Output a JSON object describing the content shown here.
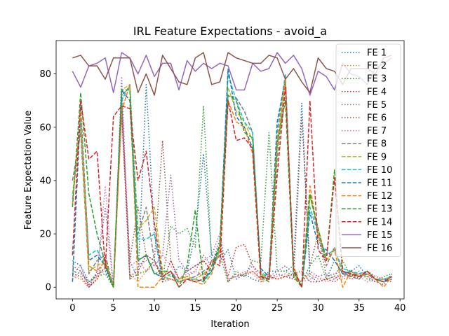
{
  "chart_data": {
    "type": "line",
    "title": "IRL Feature Expectations - avoid_a",
    "xlabel": "Iteration",
    "ylabel": "Feature Expectation Value",
    "xlim": [
      -2,
      40.5
    ],
    "ylim": [
      -4.4,
      92.5
    ],
    "xticks": [
      0,
      5,
      10,
      15,
      20,
      25,
      30,
      35,
      40
    ],
    "yticks": [
      0,
      20,
      40,
      60,
      80
    ],
    "grid": false,
    "legend_position": "top-right",
    "x": [
      0,
      1,
      2,
      3,
      4,
      5,
      6,
      7,
      8,
      9,
      10,
      11,
      12,
      13,
      14,
      15,
      16,
      17,
      18,
      19,
      20,
      21,
      22,
      23,
      24,
      25,
      26,
      27,
      28,
      29,
      30,
      31,
      32,
      33,
      34,
      35,
      36,
      37,
      38,
      39
    ],
    "series": [
      {
        "name": "FE 1",
        "color": "#1f77b4",
        "dash": "dotted",
        "values": [
          10,
          8,
          2,
          5,
          6,
          0,
          69,
          10,
          3,
          76,
          20,
          2,
          3,
          8,
          6,
          20,
          50,
          12,
          10,
          14,
          3,
          5,
          3,
          2,
          6,
          6,
          6,
          8,
          69,
          4,
          2,
          3,
          10,
          5,
          6,
          8,
          4,
          2,
          1,
          5
        ]
      },
      {
        "name": "FE 2",
        "color": "#ff7f0e",
        "dash": "dotted",
        "values": [
          4,
          3,
          0,
          3,
          8,
          0,
          70,
          5,
          2,
          6,
          10,
          3,
          3,
          2,
          4,
          2,
          10,
          6,
          16,
          3,
          4,
          5,
          6,
          3,
          4,
          3,
          4,
          3,
          2,
          5,
          3,
          3,
          4,
          3,
          4,
          5,
          4,
          3,
          2,
          4
        ]
      },
      {
        "name": "FE 3",
        "color": "#2ca02c",
        "dash": "dotted",
        "values": [
          6,
          5,
          2,
          4,
          5,
          0,
          72,
          3,
          5,
          6,
          10,
          3,
          23,
          20,
          22,
          15,
          68,
          10,
          12,
          2,
          6,
          4,
          10,
          9,
          58,
          6,
          6,
          4,
          2,
          8,
          12,
          3,
          4,
          10,
          4,
          6,
          3,
          2,
          4,
          5
        ]
      },
      {
        "name": "FE 4",
        "color": "#d62728",
        "dash": "dotted",
        "values": [
          5,
          4,
          0,
          3,
          12,
          0,
          66,
          4,
          6,
          12,
          10,
          2,
          10,
          3,
          6,
          8,
          10,
          6,
          15,
          4,
          15,
          16,
          8,
          5,
          4,
          3,
          4,
          5,
          6,
          2,
          2,
          3,
          2,
          4,
          5,
          3,
          6,
          4,
          3,
          2
        ]
      },
      {
        "name": "FE 5",
        "color": "#9467bd",
        "dash": "dotted",
        "values": [
          5,
          8,
          0,
          6,
          30,
          0,
          79,
          3,
          8,
          10,
          8,
          12,
          42,
          10,
          6,
          8,
          10,
          12,
          20,
          3,
          4,
          5,
          8,
          3,
          4,
          6,
          8,
          5,
          2,
          6,
          4,
          5,
          3,
          6,
          4,
          5,
          4,
          2,
          3,
          4
        ]
      },
      {
        "name": "FE 6",
        "color": "#8c564b",
        "dash": "dotted",
        "values": [
          8,
          6,
          1,
          5,
          7,
          0,
          67,
          10,
          30,
          12,
          10,
          55,
          10,
          3,
          4,
          6,
          12,
          8,
          18,
          2,
          5,
          4,
          6,
          3,
          3,
          5,
          4,
          3,
          64,
          8,
          20,
          4,
          5,
          6,
          3,
          4,
          5,
          3,
          3,
          4
        ]
      },
      {
        "name": "FE 7",
        "color": "#e377c2",
        "dash": "dotted",
        "values": [
          3,
          6,
          0,
          4,
          38,
          0,
          65,
          8,
          10,
          6,
          8,
          12,
          8,
          3,
          5,
          6,
          4,
          10,
          14,
          3,
          4,
          6,
          5,
          2,
          3,
          4,
          5,
          3,
          2,
          3,
          4,
          2,
          3,
          5,
          3,
          4,
          2,
          3,
          2,
          3
        ]
      },
      {
        "name": "FE 8",
        "color": "#7f7f7f",
        "dash": "dashed",
        "values": [
          40,
          58,
          5,
          10,
          12,
          0,
          72,
          75,
          20,
          30,
          10,
          4,
          6,
          2,
          3,
          4,
          6,
          8,
          12,
          72,
          71,
          66,
          58,
          4,
          5,
          48,
          78,
          6,
          0,
          35,
          20,
          8,
          15,
          5,
          4,
          3,
          6,
          3,
          2,
          4
        ]
      },
      {
        "name": "FE 9",
        "color": "#bcbd22",
        "dash": "dashed",
        "values": [
          35,
          60,
          6,
          8,
          10,
          0,
          74,
          76,
          22,
          25,
          30,
          6,
          4,
          3,
          4,
          3,
          5,
          8,
          14,
          75,
          66,
          62,
          55,
          5,
          3,
          52,
          78,
          8,
          0,
          34,
          22,
          10,
          14,
          6,
          5,
          4,
          5,
          3,
          3,
          4
        ]
      },
      {
        "name": "FE 10",
        "color": "#17becf",
        "dash": "dashed",
        "values": [
          33,
          62,
          12,
          14,
          8,
          0,
          70,
          76,
          18,
          18,
          20,
          3,
          5,
          2,
          3,
          3,
          2,
          6,
          15,
          80,
          70,
          62,
          58,
          6,
          3,
          58,
          80,
          6,
          0,
          30,
          20,
          12,
          14,
          7,
          6,
          5,
          6,
          3,
          3,
          4
        ]
      },
      {
        "name": "FE 11",
        "color": "#1f77b4",
        "dash": "dashed",
        "values": [
          2,
          68,
          10,
          12,
          8,
          0,
          74,
          70,
          10,
          12,
          5,
          4,
          3,
          2,
          3,
          2,
          3,
          6,
          16,
          82,
          64,
          60,
          52,
          7,
          4,
          62,
          78,
          6,
          0,
          28,
          16,
          14,
          10,
          5,
          6,
          4,
          5,
          3,
          2,
          3
        ]
      },
      {
        "name": "FE 12",
        "color": "#ff7f0e",
        "dash": "dashed",
        "values": [
          31,
          66,
          8,
          6,
          10,
          0,
          66,
          76,
          0,
          0,
          0,
          4,
          3,
          2,
          3,
          2,
          1,
          5,
          14,
          70,
          62,
          60,
          50,
          2,
          3,
          55,
          78,
          5,
          0,
          38,
          20,
          10,
          14,
          0,
          6,
          4,
          5,
          3,
          0,
          4
        ]
      },
      {
        "name": "FE 13",
        "color": "#2ca02c",
        "dash": "dashed",
        "values": [
          30,
          73,
          35,
          20,
          9,
          0,
          74,
          74,
          10,
          12,
          5,
          6,
          6,
          0,
          8,
          29,
          2,
          8,
          16,
          72,
          70,
          58,
          56,
          4,
          2,
          54,
          70,
          4,
          0,
          35,
          22,
          10,
          44,
          6,
          5,
          4,
          6,
          3,
          2,
          4
        ]
      },
      {
        "name": "FE 14",
        "color": "#d62728",
        "dash": "dashed",
        "values": [
          12,
          70,
          48,
          51,
          7,
          64,
          68,
          67,
          40,
          51,
          24,
          4,
          6,
          0,
          3,
          2,
          3,
          10,
          8,
          70,
          55,
          56,
          52,
          4,
          3,
          42,
          75,
          7,
          0,
          70,
          14,
          10,
          41,
          6,
          5,
          4,
          6,
          3,
          2,
          4
        ]
      },
      {
        "name": "FE 15",
        "color": "#9467bd",
        "dash": "solid",
        "values": [
          81,
          75,
          83,
          84,
          86,
          73,
          88,
          86,
          80,
          87,
          79,
          84,
          84,
          74,
          85,
          81,
          84,
          82,
          84,
          83,
          74,
          74,
          84,
          81,
          82,
          88,
          84,
          87,
          82,
          72,
          81,
          79,
          74,
          84,
          80,
          79,
          76,
          82,
          84,
          86
        ]
      },
      {
        "name": "FE 16",
        "color": "#8c564b",
        "dash": "solid",
        "values": [
          86,
          87,
          83,
          83,
          78,
          86,
          86,
          86,
          73,
          80,
          72,
          87,
          82,
          77,
          76,
          86,
          88,
          76,
          77,
          88,
          86,
          85,
          84,
          84,
          87,
          86,
          78,
          82,
          77,
          73,
          86,
          82,
          81,
          76,
          82,
          82,
          82,
          80,
          86,
          87
        ]
      }
    ]
  }
}
